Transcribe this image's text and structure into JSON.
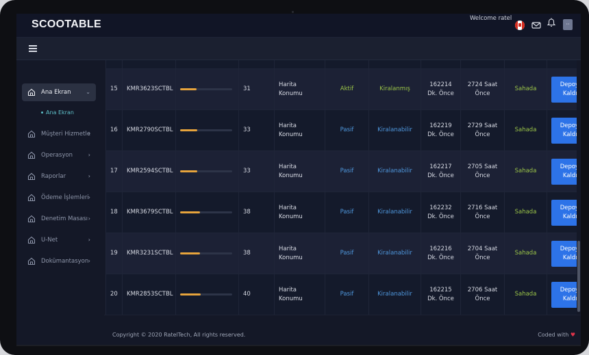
{
  "header": {
    "brand": "SCOOTABLE",
    "welcome": "Welcome ratel",
    "user_initials": "··"
  },
  "sidebar": {
    "items": [
      {
        "label": "Ana Ekran",
        "chevron": "⌄",
        "active": true,
        "icon": "home-icon"
      },
      {
        "label": "Müşteri Hizmetle",
        "chevron": "›",
        "icon": "home-icon"
      },
      {
        "label": "Operasyon",
        "chevron": "›",
        "icon": "home-icon"
      },
      {
        "label": "Raporlar",
        "chevron": "›",
        "icon": "home-icon"
      },
      {
        "label": "Ödeme İşlemleri",
        "chevron": "›",
        "icon": "home-icon"
      },
      {
        "label": "Denetim Masası",
        "chevron": "›",
        "icon": "home-icon"
      },
      {
        "label": "U-Net",
        "chevron": "›",
        "icon": "home-icon"
      },
      {
        "label": "Dokümantasyon",
        "chevron": "›",
        "icon": "home-icon"
      }
    ],
    "sub_item": "Ana Ekran"
  },
  "table": {
    "rows": [
      {
        "no": "15",
        "code": "KMR3623SCTBL",
        "battery": 0.31,
        "battery_text": "31",
        "location_1": "Harita",
        "location_2": "Konumu",
        "status": "Aktif",
        "status_type": "active",
        "rent": "Kiralanmış",
        "rent_type": "yes",
        "time_1": "162214",
        "time_2": "Dk. Önce",
        "hours_1": "2724 Saat",
        "hours_2": "Önce",
        "place": "Sahada",
        "button_1": "Depoya",
        "button_2": "Kaldır"
      },
      {
        "no": "16",
        "code": "KMR2790SCTBL",
        "battery": 0.33,
        "battery_text": "33",
        "location_1": "Harita",
        "location_2": "Konumu",
        "status": "Pasif",
        "status_type": "passive",
        "rent": "Kiralanabilir",
        "rent_type": "no",
        "time_1": "162219",
        "time_2": "Dk. Önce",
        "hours_1": "2729 Saat",
        "hours_2": "Önce",
        "place": "Sahada",
        "button_1": "Depoya",
        "button_2": "Kaldır"
      },
      {
        "no": "17",
        "code": "KMR2594SCTBL",
        "battery": 0.33,
        "battery_text": "33",
        "location_1": "Harita",
        "location_2": "Konumu",
        "status": "Pasif",
        "status_type": "passive",
        "rent": "Kiralanabilir",
        "rent_type": "no",
        "time_1": "162217",
        "time_2": "Dk. Önce",
        "hours_1": "2705 Saat",
        "hours_2": "Önce",
        "place": "Sahada",
        "button_1": "Depoya",
        "button_2": "Kaldır"
      },
      {
        "no": "18",
        "code": "KMR3679SCTBL",
        "battery": 0.38,
        "battery_text": "38",
        "location_1": "Harita",
        "location_2": "Konumu",
        "status": "Pasif",
        "status_type": "passive",
        "rent": "Kiralanabilir",
        "rent_type": "no",
        "time_1": "162232",
        "time_2": "Dk. Önce",
        "hours_1": "2716 Saat",
        "hours_2": "Önce",
        "place": "Sahada",
        "button_1": "Depoya",
        "button_2": "Kaldır"
      },
      {
        "no": "19",
        "code": "KMR3231SCTBL",
        "battery": 0.38,
        "battery_text": "38",
        "location_1": "Harita",
        "location_2": "Konumu",
        "status": "Pasif",
        "status_type": "passive",
        "rent": "Kiralanabilir",
        "rent_type": "no",
        "time_1": "162216",
        "time_2": "Dk. Önce",
        "hours_1": "2704 Saat",
        "hours_2": "Önce",
        "place": "Sahada",
        "button_1": "Depoya",
        "button_2": "Kaldır"
      },
      {
        "no": "20",
        "code": "KMR2853SCTBL",
        "battery": 0.4,
        "battery_text": "40",
        "location_1": "Harita",
        "location_2": "Konumu",
        "status": "Pasif",
        "status_type": "passive",
        "rent": "Kiralanabilir",
        "rent_type": "no",
        "time_1": "162215",
        "time_2": "Dk. Önce",
        "hours_1": "2706 Saat",
        "hours_2": "Önce",
        "place": "Sahada",
        "button_1": "Depoya",
        "button_2": "Kaldır"
      }
    ]
  },
  "footer": {
    "copyright": "Copyright © 2020 RatelTech, All rights reserved.",
    "coded_with": "Coded with",
    "heart": "♥"
  },
  "colors": {
    "accent_blue": "#2d73e8",
    "active_green": "#9bc548",
    "passive_blue": "#4f98de",
    "battery_orange": "#e7a43c",
    "sub_item_teal": "#5fc0c9"
  }
}
